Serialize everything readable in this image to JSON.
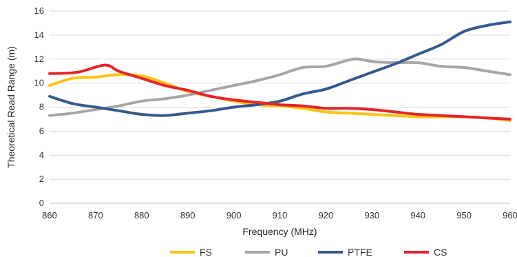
{
  "chart_data": {
    "type": "line",
    "xlabel": "Frequency (MHz)",
    "ylabel": "Theoretical Read Range (m)",
    "xlim": [
      860,
      960
    ],
    "ylim": [
      0,
      16
    ],
    "xticks": [
      860,
      870,
      880,
      890,
      900,
      910,
      920,
      930,
      940,
      950,
      960
    ],
    "yticks": [
      0,
      2,
      4,
      6,
      8,
      10,
      12,
      14,
      16
    ],
    "grid": "horizontal",
    "legend_position": "bottom",
    "series": [
      {
        "name": "FS",
        "color": "#FFC20E",
        "x": [
          860,
          865,
          870,
          875,
          880,
          885,
          890,
          895,
          900,
          905,
          910,
          915,
          920,
          925,
          930,
          935,
          940,
          945,
          950,
          955,
          960
        ],
        "y": [
          9.8,
          10.4,
          10.5,
          10.7,
          10.6,
          10.0,
          9.3,
          8.9,
          8.5,
          8.2,
          8.1,
          7.9,
          7.6,
          7.5,
          7.4,
          7.3,
          7.2,
          7.2,
          7.2,
          7.1,
          6.9
        ]
      },
      {
        "name": "PU",
        "color": "#A6A6A6",
        "x": [
          860,
          865,
          870,
          875,
          880,
          885,
          890,
          895,
          900,
          905,
          910,
          915,
          920,
          926,
          930,
          935,
          940,
          945,
          950,
          955,
          960
        ],
        "y": [
          7.3,
          7.5,
          7.8,
          8.1,
          8.5,
          8.7,
          9.0,
          9.4,
          9.8,
          10.2,
          10.7,
          11.3,
          11.4,
          12.0,
          11.8,
          11.7,
          11.7,
          11.4,
          11.3,
          11.0,
          10.7
        ]
      },
      {
        "name": "PTFE",
        "color": "#335B8E",
        "x": [
          860,
          865,
          870,
          875,
          880,
          885,
          890,
          895,
          900,
          905,
          910,
          915,
          920,
          925,
          930,
          935,
          940,
          945,
          950,
          955,
          960
        ],
        "y": [
          8.9,
          8.3,
          8.0,
          7.7,
          7.4,
          7.3,
          7.5,
          7.7,
          8.0,
          8.2,
          8.5,
          9.1,
          9.5,
          10.2,
          10.9,
          11.6,
          12.4,
          13.2,
          14.3,
          14.8,
          15.1
        ]
      },
      {
        "name": "CS",
        "color": "#E3262B",
        "x": [
          860,
          866,
          872,
          875,
          880,
          885,
          890,
          895,
          900,
          905,
          910,
          915,
          920,
          925,
          930,
          935,
          940,
          945,
          950,
          955,
          960
        ],
        "y": [
          10.8,
          10.9,
          11.5,
          11.0,
          10.4,
          9.8,
          9.4,
          8.9,
          8.6,
          8.4,
          8.2,
          8.1,
          7.9,
          7.9,
          7.8,
          7.6,
          7.4,
          7.3,
          7.2,
          7.1,
          7.0
        ]
      }
    ]
  }
}
